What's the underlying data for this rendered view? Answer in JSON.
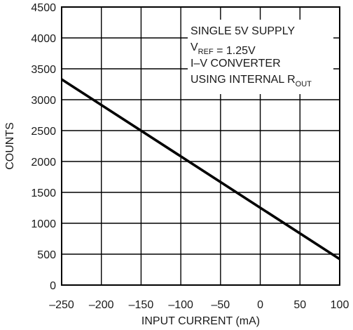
{
  "chart_data": {
    "type": "line",
    "title": "",
    "xlabel": "INPUT CURRENT (mA)",
    "ylabel": "COUNTS",
    "xlim": [
      -250,
      100
    ],
    "ylim": [
      0,
      4500
    ],
    "x_ticks": [
      -250,
      -200,
      -150,
      -100,
      -50,
      0,
      50,
      100
    ],
    "y_ticks": [
      0,
      500,
      1000,
      1500,
      2000,
      2500,
      3000,
      3500,
      4000,
      4500
    ],
    "x_tick_labels": [
      "–250",
      "–200",
      "–150",
      "–100",
      "–50",
      "0",
      "50",
      "100"
    ],
    "y_tick_labels": [
      "0",
      "500",
      "1000",
      "1500",
      "2000",
      "2500",
      "3000",
      "3500",
      "4000",
      "4500"
    ],
    "grid": true,
    "series": [
      {
        "x": [
          -250,
          100
        ],
        "y": [
          3330,
          420
        ]
      }
    ],
    "annotations": [
      {
        "parts": [
          {
            "text": "SINGLE 5V SUPPLY"
          }
        ]
      },
      {
        "parts": [
          {
            "text": "V"
          },
          {
            "text": "REF",
            "sub": true
          },
          {
            "text": " = 1.25V"
          }
        ]
      },
      {
        "parts": [
          {
            "text": "I–V CONVERTER"
          }
        ]
      },
      {
        "parts": [
          {
            "text": "USING INTERNAL R"
          },
          {
            "text": "OUT",
            "sub": true
          }
        ]
      }
    ]
  }
}
